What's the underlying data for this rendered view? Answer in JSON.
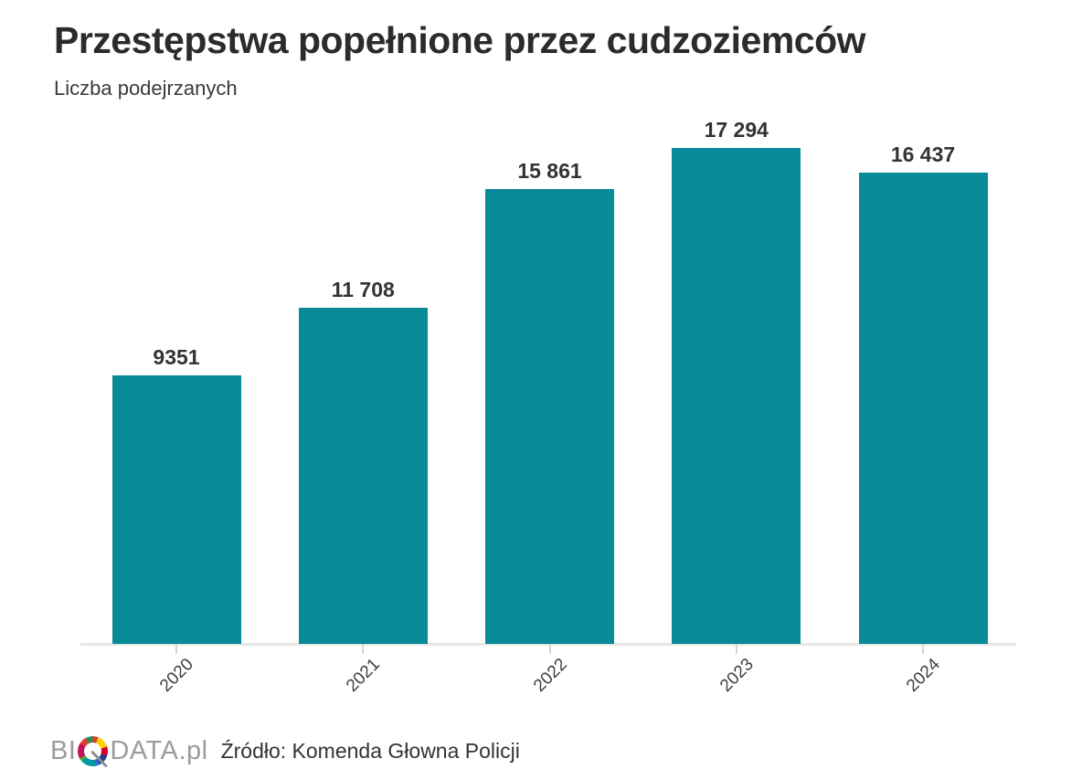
{
  "header": {
    "title": "Przestępstwa popełnione przez cudzoziemców",
    "subtitle": "Liczba podejrzanych"
  },
  "chart_data": {
    "type": "bar",
    "categories": [
      "2020",
      "2021",
      "2022",
      "2023",
      "2024"
    ],
    "values": [
      9351,
      11708,
      15861,
      17294,
      16437
    ],
    "value_labels": [
      "9351",
      "11 708",
      "15 861",
      "17 294",
      "16 437"
    ],
    "title": "Przestępstwa popełnione przez cudzoziemców",
    "subtitle": "Liczba podejrzanych",
    "xlabel": "",
    "ylabel": "",
    "ylim": [
      0,
      18000
    ],
    "grid": false,
    "legend": false,
    "bar_color": "#088a98",
    "axis_line_color": "#e6e6e6",
    "value_label_position": "above-bars",
    "x_tick_rotation_deg": -45
  },
  "footer": {
    "logo_prefix": "BI",
    "logo_suffix": "DATA.pl",
    "source": "Źródło: Komenda Głowna Policji"
  }
}
